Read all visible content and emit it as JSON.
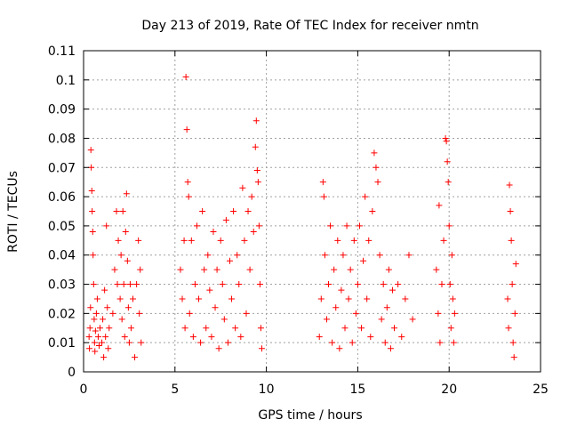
{
  "chart_data": {
    "type": "scatter",
    "title": "Day 213 of 2019, Rate Of TEC Index for receiver nmtn",
    "xlabel": "GPS time / hours",
    "ylabel": "ROTI / TECUs",
    "xlim": [
      0,
      25
    ],
    "ylim": [
      0,
      0.11
    ],
    "xticks": [
      0,
      5,
      10,
      15,
      20,
      25
    ],
    "yticks": [
      0,
      0.01,
      0.02,
      0.03,
      0.04,
      0.05,
      0.06,
      0.07,
      0.08,
      0.09,
      0.1,
      0.11
    ],
    "grid": true,
    "marker": "plus",
    "color": "#ff0000",
    "series": [
      {
        "points": [
          [
            0.3,
            0.012
          ],
          [
            0.32,
            0.008
          ],
          [
            0.35,
            0.015
          ],
          [
            0.38,
            0.022
          ],
          [
            0.4,
            0.076
          ],
          [
            0.42,
            0.07
          ],
          [
            0.45,
            0.062
          ],
          [
            0.47,
            0.055
          ],
          [
            0.5,
            0.048
          ],
          [
            0.52,
            0.04
          ],
          [
            0.55,
            0.03
          ],
          [
            0.58,
            0.018
          ],
          [
            0.6,
            0.01
          ],
          [
            0.62,
            0.007
          ],
          [
            0.65,
            0.014
          ],
          [
            0.7,
            0.02
          ],
          [
            0.75,
            0.025
          ],
          [
            0.8,
            0.012
          ],
          [
            0.85,
            0.009
          ],
          [
            0.9,
            0.015
          ],
          [
            1.0,
            0.01
          ],
          [
            1.05,
            0.018
          ],
          [
            1.1,
            0.005
          ],
          [
            1.15,
            0.028
          ],
          [
            1.2,
            0.012
          ],
          [
            1.25,
            0.05
          ],
          [
            1.3,
            0.022
          ],
          [
            1.35,
            0.008
          ],
          [
            1.4,
            0.015
          ],
          [
            1.6,
            0.02
          ],
          [
            1.7,
            0.035
          ],
          [
            1.8,
            0.055
          ],
          [
            1.85,
            0.03
          ],
          [
            1.9,
            0.045
          ],
          [
            2.0,
            0.025
          ],
          [
            2.05,
            0.04
          ],
          [
            2.1,
            0.018
          ],
          [
            2.15,
            0.055
          ],
          [
            2.2,
            0.03
          ],
          [
            2.25,
            0.012
          ],
          [
            2.3,
            0.048
          ],
          [
            2.35,
            0.061
          ],
          [
            2.4,
            0.038
          ],
          [
            2.45,
            0.022
          ],
          [
            2.5,
            0.01
          ],
          [
            2.55,
            0.03
          ],
          [
            2.6,
            0.015
          ],
          [
            2.7,
            0.025
          ],
          [
            2.8,
            0.005
          ],
          [
            2.9,
            0.03
          ],
          [
            3.0,
            0.045
          ],
          [
            3.05,
            0.02
          ],
          [
            3.1,
            0.035
          ],
          [
            3.15,
            0.01
          ],
          [
            5.3,
            0.035
          ],
          [
            5.4,
            0.025
          ],
          [
            5.5,
            0.045
          ],
          [
            5.55,
            0.015
          ],
          [
            5.6,
            0.101
          ],
          [
            5.65,
            0.083
          ],
          [
            5.7,
            0.065
          ],
          [
            5.75,
            0.06
          ],
          [
            5.8,
            0.02
          ],
          [
            5.9,
            0.045
          ],
          [
            6.0,
            0.012
          ],
          [
            6.1,
            0.03
          ],
          [
            6.2,
            0.05
          ],
          [
            6.3,
            0.025
          ],
          [
            6.4,
            0.01
          ],
          [
            6.5,
            0.055
          ],
          [
            6.6,
            0.035
          ],
          [
            6.7,
            0.015
          ],
          [
            6.8,
            0.04
          ],
          [
            6.9,
            0.028
          ],
          [
            7.0,
            0.012
          ],
          [
            7.1,
            0.048
          ],
          [
            7.2,
            0.022
          ],
          [
            7.3,
            0.035
          ],
          [
            7.4,
            0.008
          ],
          [
            7.5,
            0.045
          ],
          [
            7.6,
            0.03
          ],
          [
            7.7,
            0.018
          ],
          [
            7.8,
            0.052
          ],
          [
            7.9,
            0.01
          ],
          [
            8.0,
            0.038
          ],
          [
            8.1,
            0.025
          ],
          [
            8.2,
            0.055
          ],
          [
            8.3,
            0.015
          ],
          [
            8.4,
            0.04
          ],
          [
            8.5,
            0.03
          ],
          [
            8.6,
            0.012
          ],
          [
            8.7,
            0.063
          ],
          [
            8.8,
            0.045
          ],
          [
            8.9,
            0.02
          ],
          [
            9.0,
            0.055
          ],
          [
            9.1,
            0.035
          ],
          [
            9.2,
            0.06
          ],
          [
            9.3,
            0.048
          ],
          [
            9.4,
            0.077
          ],
          [
            9.45,
            0.086
          ],
          [
            9.5,
            0.069
          ],
          [
            9.55,
            0.065
          ],
          [
            9.6,
            0.05
          ],
          [
            9.65,
            0.03
          ],
          [
            9.7,
            0.015
          ],
          [
            9.75,
            0.008
          ],
          [
            12.9,
            0.012
          ],
          [
            13.0,
            0.025
          ],
          [
            13.1,
            0.065
          ],
          [
            13.15,
            0.06
          ],
          [
            13.2,
            0.04
          ],
          [
            13.3,
            0.018
          ],
          [
            13.4,
            0.03
          ],
          [
            13.5,
            0.05
          ],
          [
            13.6,
            0.01
          ],
          [
            13.7,
            0.035
          ],
          [
            13.8,
            0.022
          ],
          [
            13.9,
            0.045
          ],
          [
            14.0,
            0.008
          ],
          [
            14.1,
            0.028
          ],
          [
            14.2,
            0.04
          ],
          [
            14.3,
            0.015
          ],
          [
            14.4,
            0.05
          ],
          [
            14.5,
            0.025
          ],
          [
            14.6,
            0.035
          ],
          [
            14.7,
            0.01
          ],
          [
            14.8,
            0.045
          ],
          [
            14.9,
            0.02
          ],
          [
            15.0,
            0.03
          ],
          [
            15.1,
            0.05
          ],
          [
            15.2,
            0.015
          ],
          [
            15.3,
            0.038
          ],
          [
            15.4,
            0.06
          ],
          [
            15.5,
            0.025
          ],
          [
            15.6,
            0.045
          ],
          [
            15.7,
            0.012
          ],
          [
            15.8,
            0.055
          ],
          [
            15.9,
            0.075
          ],
          [
            16.0,
            0.07
          ],
          [
            16.1,
            0.065
          ],
          [
            16.2,
            0.04
          ],
          [
            16.3,
            0.018
          ],
          [
            16.4,
            0.03
          ],
          [
            16.5,
            0.01
          ],
          [
            16.6,
            0.022
          ],
          [
            16.7,
            0.035
          ],
          [
            16.8,
            0.008
          ],
          [
            16.9,
            0.028
          ],
          [
            17.0,
            0.015
          ],
          [
            17.2,
            0.03
          ],
          [
            17.4,
            0.012
          ],
          [
            17.6,
            0.025
          ],
          [
            17.8,
            0.04
          ],
          [
            18.0,
            0.018
          ],
          [
            19.3,
            0.035
          ],
          [
            19.4,
            0.02
          ],
          [
            19.45,
            0.057
          ],
          [
            19.5,
            0.01
          ],
          [
            19.6,
            0.03
          ],
          [
            19.7,
            0.045
          ],
          [
            19.8,
            0.08
          ],
          [
            19.85,
            0.079
          ],
          [
            19.9,
            0.072
          ],
          [
            19.95,
            0.065
          ],
          [
            20.0,
            0.05
          ],
          [
            20.05,
            0.03
          ],
          [
            20.1,
            0.015
          ],
          [
            20.15,
            0.04
          ],
          [
            20.2,
            0.025
          ],
          [
            20.25,
            0.01
          ],
          [
            20.3,
            0.02
          ],
          [
            23.2,
            0.025
          ],
          [
            23.25,
            0.015
          ],
          [
            23.3,
            0.064
          ],
          [
            23.35,
            0.055
          ],
          [
            23.4,
            0.045
          ],
          [
            23.45,
            0.03
          ],
          [
            23.5,
            0.01
          ],
          [
            23.55,
            0.005
          ],
          [
            23.6,
            0.02
          ],
          [
            23.65,
            0.037
          ]
        ]
      }
    ]
  }
}
